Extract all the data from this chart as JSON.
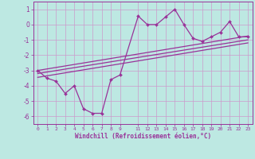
{
  "title": "",
  "xlabel": "Windchill (Refroidissement éolien,°C)",
  "bg_color": "#bde8e2",
  "grid_color": "#cc99cc",
  "line_color": "#993399",
  "xlim": [
    -0.5,
    23.5
  ],
  "ylim": [
    -6.5,
    1.5
  ],
  "xticks": [
    0,
    1,
    2,
    3,
    4,
    5,
    6,
    7,
    8,
    9,
    11,
    12,
    13,
    14,
    15,
    16,
    17,
    18,
    19,
    20,
    21,
    22,
    23
  ],
  "yticks": [
    -6,
    -5,
    -4,
    -3,
    -2,
    -1,
    0,
    1
  ],
  "data_x": [
    0,
    1,
    2,
    3,
    4,
    5,
    6,
    7,
    8,
    9,
    11,
    12,
    13,
    14,
    15,
    16,
    17,
    18,
    19,
    20,
    21,
    22,
    23
  ],
  "data_y": [
    -3.0,
    -3.5,
    -3.7,
    -4.5,
    -4.0,
    -5.5,
    -5.8,
    -5.8,
    -3.6,
    -3.3,
    0.55,
    0.0,
    0.0,
    0.5,
    1.0,
    0.0,
    -0.9,
    -1.1,
    -0.8,
    -0.5,
    0.2,
    -0.8,
    -0.8
  ],
  "trend1_x": [
    0,
    23
  ],
  "trend1_y": [
    -3.0,
    -0.75
  ],
  "trend2_x": [
    0,
    23
  ],
  "trend2_y": [
    -3.2,
    -1.0
  ],
  "trend3_x": [
    0,
    23
  ],
  "trend3_y": [
    -3.45,
    -1.2
  ]
}
